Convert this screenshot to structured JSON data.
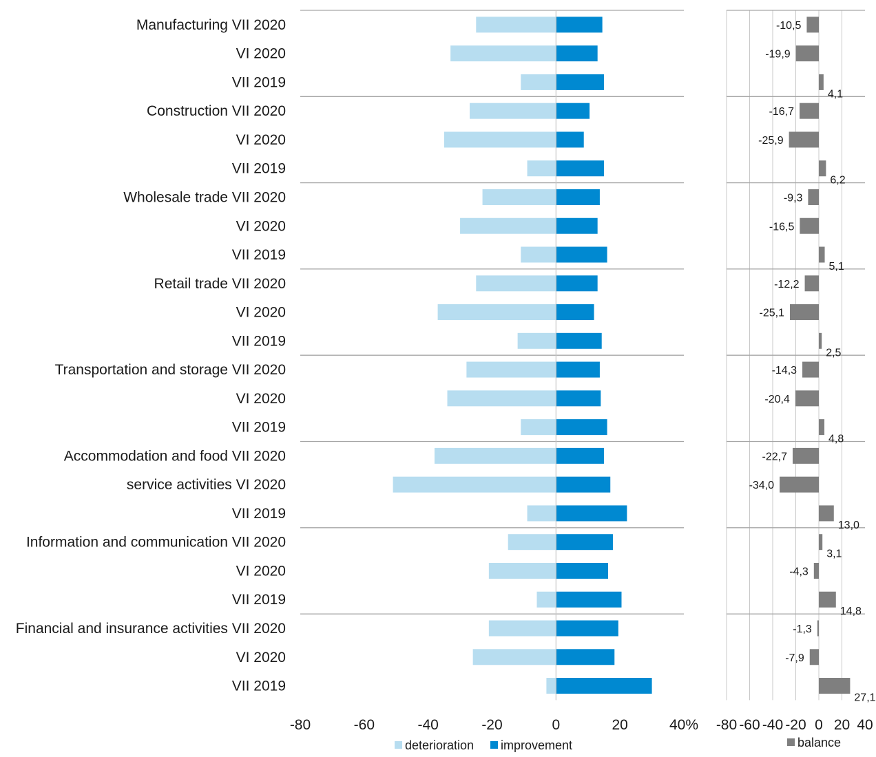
{
  "colors": {
    "deterioration": "#b7ddf0",
    "improvement": "#0089d1",
    "balance": "#7f7f7f",
    "separator": "#a6a6a6",
    "grid": "#c8c8c8"
  },
  "chart_data": [
    {
      "type": "bar",
      "orientation": "horizontal",
      "stacked_diverging": true,
      "categories": [
        "Manufacturing VII 2020",
        "VI 2020",
        "VII 2019",
        "Construction VII 2020",
        "VI 2020",
        "VII 2019",
        "Wholesale trade VII 2020",
        "VI 2020",
        "VII 2019",
        "Retail trade VII 2020",
        "VI 2020",
        "VII 2019",
        "Transportation and storage VII 2020",
        "VI 2020",
        "VII 2019",
        "Accommodation and food VII 2020",
        "service activities  VI 2020",
        "VII 2019",
        "Information and communication VII 2020",
        "VI 2020",
        "VII 2019",
        "Financial and insurance activities VII 2020",
        "VI 2020",
        "VII 2019"
      ],
      "series": [
        {
          "name": "deterioration",
          "values": [
            -25,
            -33,
            -11,
            -27,
            -35,
            -9,
            -23,
            -30,
            -11,
            -25,
            -37,
            -12,
            -28,
            -34,
            -11,
            -38,
            -51,
            -9,
            -15,
            -21,
            -6,
            -21,
            -26,
            -3
          ]
        },
        {
          "name": "improvement",
          "values": [
            14.5,
            13,
            15,
            10.5,
            8.7,
            15,
            13.7,
            13,
            16,
            13,
            11.9,
            14.3,
            13.7,
            14,
            16,
            15,
            17,
            22.2,
            17.8,
            16.3,
            20.5,
            19.5,
            18.3,
            30
          ]
        }
      ],
      "xlim": [
        -80,
        40
      ],
      "xticks": [
        "-80",
        "-60",
        "-40",
        "-20",
        "0",
        "20",
        "40%"
      ],
      "grid": false,
      "legend_position": "bottom-center"
    },
    {
      "type": "bar",
      "orientation": "horizontal",
      "series": [
        {
          "name": "balance",
          "values": [
            -10.5,
            -19.9,
            4.1,
            -16.7,
            -25.9,
            6.2,
            -9.3,
            -16.5,
            5.1,
            -12.2,
            -25.1,
            2.5,
            -14.3,
            -20.4,
            4.8,
            -22.7,
            -34.0,
            13.0,
            3.1,
            -4.3,
            14.8,
            -1.3,
            -7.9,
            27.1
          ],
          "labels": [
            "-10,5",
            "-19,9",
            "4,1",
            "-16,7",
            "-25,9",
            "6,2",
            "-9,3",
            "-16,5",
            "5,1",
            "-12,2",
            "-25,1",
            "2,5",
            "-14,3",
            "-20,4",
            "4,8",
            "-22,7",
            "-34,0",
            "13,0",
            "3,1",
            "-4,3",
            "14,8",
            "-1,3",
            "-7,9",
            "27,1"
          ]
        }
      ],
      "xlim": [
        -80,
        40
      ],
      "xticks": [
        "-80",
        "-60",
        "-40",
        "-20",
        "0",
        "20",
        "40"
      ],
      "grid": true,
      "legend_position": "bottom-center"
    }
  ]
}
